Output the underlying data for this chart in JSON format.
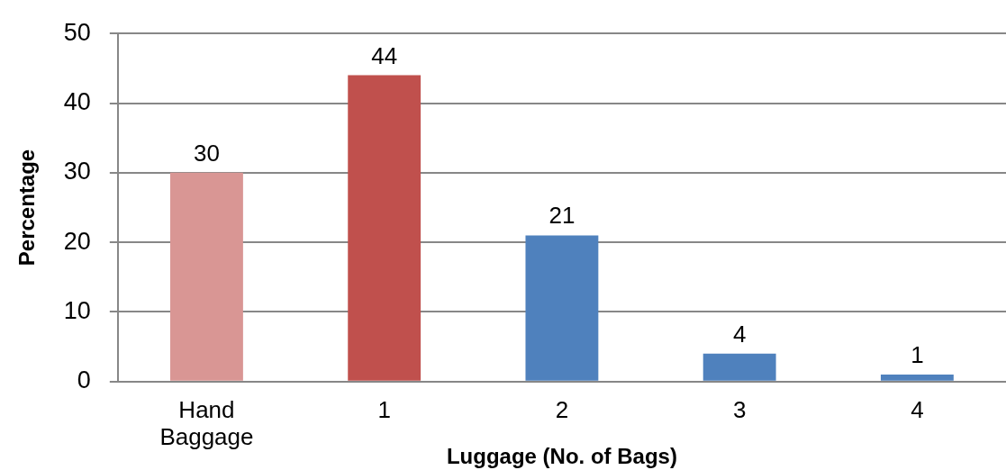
{
  "chart_data": {
    "type": "bar",
    "xlabel": "Luggage (No. of Bags)",
    "ylabel": "Percentage",
    "categories": [
      "Hand Baggage",
      "1",
      "2",
      "3",
      "4"
    ],
    "values": [
      30,
      44,
      21,
      4,
      1
    ],
    "colors": [
      "#d99694",
      "#c0504d",
      "#4f81bd",
      "#4f81bd",
      "#4f81bd"
    ],
    "ylim": [
      0,
      50
    ],
    "yticks": [
      0,
      10,
      20,
      30,
      40,
      50
    ],
    "grid": "y",
    "data_labels": true
  }
}
